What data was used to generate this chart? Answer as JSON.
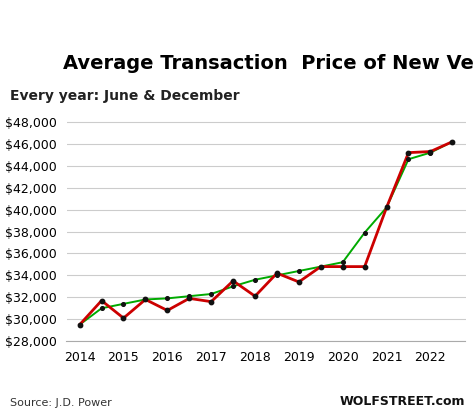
{
  "title": "Average Transaction  Price of New Vehicles",
  "subtitle": "Every year: June & December",
  "source_left": "Source: J.D. Power",
  "source_right": "WOLFSTREET.com",
  "x_values": [
    2014.0,
    2014.5,
    2015.0,
    2015.5,
    2016.0,
    2016.5,
    2017.0,
    2017.5,
    2018.0,
    2018.5,
    2019.0,
    2019.5,
    2020.0,
    2020.5,
    2021.0,
    2021.5,
    2022.0,
    2022.5
  ],
  "red_values": [
    29500,
    31700,
    30100,
    31800,
    30800,
    31900,
    31600,
    33500,
    32100,
    34200,
    33400,
    34800,
    34800,
    34800,
    40200,
    45200,
    45300,
    46200
  ],
  "green_values": [
    29500,
    31000,
    31400,
    31800,
    31900,
    32100,
    32300,
    33000,
    33600,
    34000,
    34400,
    34800,
    35200,
    37900,
    40200,
    44600,
    45200,
    46200
  ],
  "ylim": [
    28000,
    48500
  ],
  "yticks": [
    28000,
    30000,
    32000,
    34000,
    36000,
    38000,
    40000,
    42000,
    44000,
    46000,
    48000
  ],
  "xlim": [
    2013.7,
    2022.8
  ],
  "xticks": [
    2014,
    2015,
    2016,
    2017,
    2018,
    2019,
    2020,
    2021,
    2022
  ],
  "red_color": "#cc0000",
  "green_color": "#00aa00",
  "marker_color": "#111111",
  "bg_color": "#ffffff",
  "grid_color": "#cccccc",
  "title_fontsize": 14,
  "subtitle_fontsize": 10,
  "tick_fontsize": 9,
  "source_fontsize": 8
}
